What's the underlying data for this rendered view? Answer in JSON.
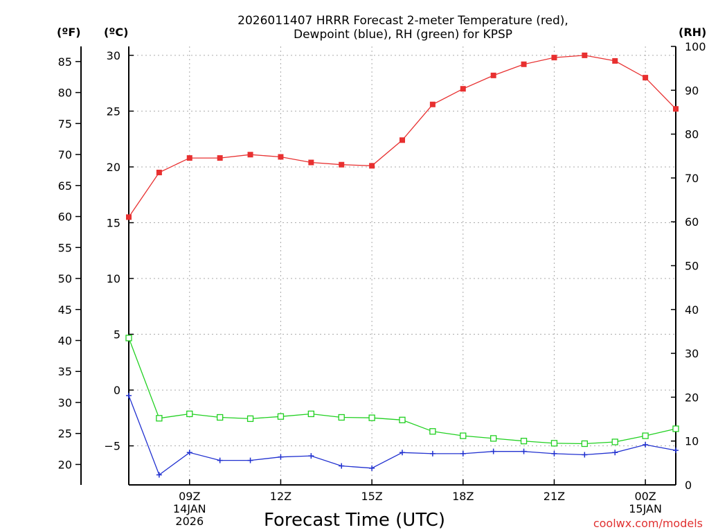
{
  "chart_data": {
    "type": "line",
    "title": [
      "2026011407 HRRR Forecast 2-meter Temperature (red),",
      "Dewpoint (blue), RH (green) for KPSP"
    ],
    "xlabel": "Forecast Time (UTC)",
    "credit": "coolwx.com/models",
    "unit_f": "(ºF)",
    "unit_c": "(ºC)",
    "unit_rh": "(RH)",
    "x_hours": [
      7,
      8,
      9,
      10,
      11,
      12,
      13,
      14,
      15,
      16,
      17,
      18,
      19,
      20,
      21,
      22,
      23,
      24,
      25
    ],
    "xlim": [
      7,
      25
    ],
    "x_ticks": [
      {
        "h": 9,
        "labels": [
          "09Z",
          "14JAN",
          "2026"
        ]
      },
      {
        "h": 12,
        "labels": [
          "12Z"
        ]
      },
      {
        "h": 15,
        "labels": [
          "15Z"
        ]
      },
      {
        "h": 18,
        "labels": [
          "18Z"
        ]
      },
      {
        "h": 21,
        "labels": [
          "21Z"
        ]
      },
      {
        "h": 24,
        "labels": [
          "00Z",
          "15JAN"
        ]
      }
    ],
    "ylim_c": [
      -8.5,
      30.8
    ],
    "yticks_c": [
      -5,
      0,
      5,
      10,
      15,
      20,
      25,
      30
    ],
    "yticks_f": [
      20,
      25,
      30,
      35,
      40,
      45,
      50,
      55,
      60,
      65,
      70,
      75,
      80,
      85
    ],
    "ylim_rh": [
      0,
      100
    ],
    "yticks_rh": [
      0,
      10,
      20,
      30,
      40,
      50,
      60,
      70,
      80,
      90,
      100
    ],
    "series": [
      {
        "name": "Temperature",
        "color": "#e83030",
        "axis": "c",
        "marker": "filled-square",
        "values": [
          15.5,
          19.5,
          20.8,
          20.8,
          21.1,
          20.9,
          20.4,
          20.2,
          20.1,
          22.4,
          25.6,
          27.0,
          28.2,
          29.2,
          29.8,
          30.0,
          29.5,
          28.0,
          25.2
        ]
      },
      {
        "name": "Dewpoint",
        "color": "#2030d0",
        "axis": "c",
        "marker": "plus",
        "values": [
          -0.5,
          -7.6,
          -5.6,
          -6.3,
          -6.3,
          -6.0,
          -5.9,
          -6.8,
          -7.0,
          -5.6,
          -5.7,
          -5.7,
          -5.5,
          -5.5,
          -5.7,
          -5.8,
          -5.6,
          -4.9,
          -5.4
        ]
      },
      {
        "name": "RH",
        "color": "#20d020",
        "axis": "rh",
        "marker": "open-square",
        "values": [
          33.5,
          15.2,
          16.2,
          15.4,
          15.1,
          15.6,
          16.2,
          15.4,
          15.3,
          14.8,
          12.2,
          11.2,
          10.6,
          10.0,
          9.5,
          9.4,
          9.8,
          11.2,
          12.8
        ]
      }
    ]
  }
}
